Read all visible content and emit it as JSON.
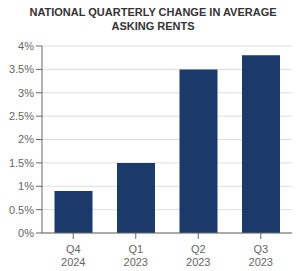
{
  "chart_data": {
    "type": "bar",
    "title": "NATIONAL QUARTERLY CHANGE IN AVERAGE\nASKING RENTS",
    "categories": [
      "Q4\n2024",
      "Q1\n2023",
      "Q2\n2023",
      "Q3\n2023"
    ],
    "values": [
      0.009,
      0.015,
      0.035,
      0.038
    ],
    "color": "#1b3a6b",
    "ylim": [
      0,
      0.04
    ],
    "yticks": [
      {
        "value": 0.0,
        "label": "0%"
      },
      {
        "value": 0.005,
        "label": "0.5%"
      },
      {
        "value": 0.01,
        "label": "1%"
      },
      {
        "value": 0.015,
        "label": "1.5%"
      },
      {
        "value": 0.02,
        "label": "2%"
      },
      {
        "value": 0.025,
        "label": "2.5%"
      },
      {
        "value": 0.03,
        "label": "3%"
      },
      {
        "value": 0.035,
        "label": "3.5%"
      },
      {
        "value": 0.04,
        "label": "4%"
      }
    ],
    "grid": true
  }
}
